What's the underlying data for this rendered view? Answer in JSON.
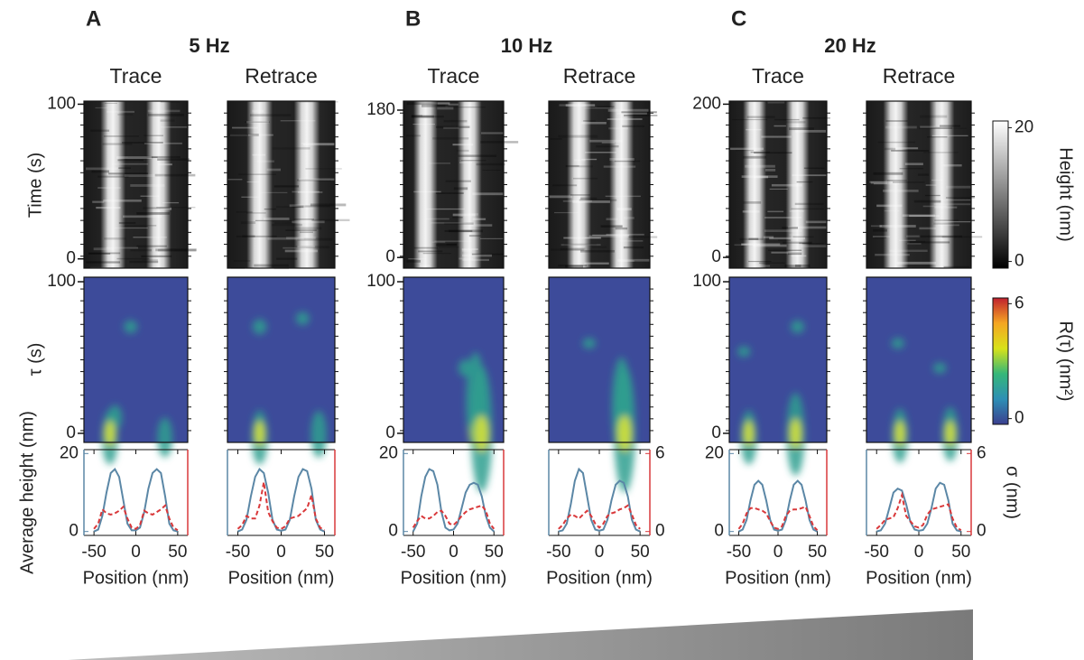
{
  "groups": [
    {
      "letter": "A",
      "title": "5 Hz",
      "columns": [
        "Trace",
        "Retrace"
      ],
      "time_ylim": [
        -6,
        102
      ],
      "time_yticks": [
        0,
        100
      ],
      "tau_ylim": [
        -6,
        103
      ],
      "tau_yticks": [
        0,
        100
      ]
    },
    {
      "letter": "B",
      "title": "10 Hz",
      "columns": [
        "Trace",
        "Retrace"
      ],
      "time_ylim": [
        -13,
        191
      ],
      "time_yticks": [
        0,
        180
      ],
      "tau_ylim": [
        -6,
        103
      ],
      "tau_yticks": [
        0,
        100
      ]
    },
    {
      "letter": "C",
      "title": "20 Hz",
      "columns": [
        "Trace",
        "Retrace"
      ],
      "time_ylim": [
        -14,
        204
      ],
      "time_yticks": [
        0,
        200
      ],
      "tau_ylim": [
        -6,
        103
      ],
      "tau_yticks": [
        0,
        100
      ]
    }
  ],
  "time_axis_label": "Time (s)",
  "tau_axis_label": "τ (s)",
  "colorbars": [
    {
      "label": "Height (nm)",
      "lim": [
        -1,
        21
      ],
      "ticks": [
        0,
        20
      ],
      "colors": [
        "#000000",
        "#ffffff"
      ]
    },
    {
      "label": "R(τ) (nm²)",
      "lim": [
        -0.3,
        6.3
      ],
      "ticks": [
        0,
        6
      ],
      "colors": [
        "#3b3f8f",
        "#2d8fb5",
        "#35b779",
        "#d8e219",
        "#f5a623",
        "#c0212f"
      ]
    }
  ],
  "chart_data": [
    {
      "type": "line",
      "xlabel": "Position (nm)",
      "y_label": "Average height (nm)",
      "x": [
        -50,
        -45,
        -40,
        -35,
        -30,
        -25,
        -20,
        -15,
        -10,
        -5,
        0,
        5,
        10,
        15,
        20,
        25,
        30,
        35,
        40,
        45,
        50
      ],
      "xlim": [
        -62,
        62
      ],
      "xticks": [
        -50,
        0,
        50
      ],
      "ylim": [
        -1,
        21
      ],
      "yticks": [
        0,
        20
      ],
      "y2lim": [
        -0.3,
        6.3
      ],
      "series": [
        {
          "color": "#5b87a6",
          "values": [
            0,
            0.5,
            4,
            10,
            15,
            16,
            14,
            8,
            2,
            0.3,
            0.3,
            1,
            5,
            11,
            15,
            16,
            15,
            9,
            2,
            0.3,
            0
          ]
        },
        {
          "color": "#d9383a",
          "axis": "y2",
          "dash": true,
          "values": [
            0.2,
            0.6,
            1.7,
            1.4,
            1.3,
            1.4,
            1.6,
            1.9,
            1.0,
            0.3,
            0.2,
            0.5,
            1.6,
            1.4,
            1.3,
            1.5,
            1.7,
            2.0,
            1.0,
            0.3,
            0.1
          ]
        }
      ]
    },
    {
      "type": "line",
      "xlabel": "Position (nm)",
      "x": [
        -50,
        -45,
        -40,
        -35,
        -30,
        -25,
        -20,
        -15,
        -10,
        -5,
        0,
        5,
        10,
        15,
        20,
        25,
        30,
        35,
        40,
        45,
        50
      ],
      "xlim": [
        -62,
        62
      ],
      "xticks": [
        -50,
        0,
        50
      ],
      "ylim": [
        -1,
        21
      ],
      "y2lim": [
        -0.3,
        6.3
      ],
      "series": [
        {
          "color": "#5b87a6",
          "values": [
            0,
            0.5,
            3,
            9,
            14,
            16,
            15,
            10,
            3,
            0.5,
            0.2,
            0.5,
            3,
            9,
            14,
            16,
            15.5,
            11,
            3,
            0.5,
            0
          ]
        },
        {
          "color": "#d9383a",
          "axis": "y2",
          "dash": true,
          "values": [
            0.2,
            0.5,
            1.2,
            1.0,
            1.0,
            2.0,
            3.8,
            1.5,
            0.8,
            0.3,
            0.2,
            0.4,
            1.0,
            1.1,
            1.2,
            1.5,
            1.8,
            2.8,
            1.0,
            0.3,
            0.1
          ]
        }
      ]
    },
    {
      "type": "line",
      "xlabel": "Position (nm)",
      "x": [
        -50,
        -45,
        -40,
        -35,
        -30,
        -25,
        -20,
        -15,
        -10,
        -5,
        0,
        5,
        10,
        15,
        20,
        25,
        30,
        35,
        40,
        45,
        50
      ],
      "xlim": [
        -62,
        62
      ],
      "xticks": [
        -50,
        0,
        50
      ],
      "ylim": [
        -1,
        21
      ],
      "yticks": [
        0,
        20
      ],
      "y2lim": [
        -0.3,
        6.3
      ],
      "series": [
        {
          "color": "#5b87a6",
          "values": [
            0,
            2,
            9,
            14,
            16,
            15.5,
            12,
            5,
            1,
            0.3,
            0.5,
            2,
            6,
            10,
            12,
            12.5,
            12,
            9,
            4,
            1,
            0
          ]
        },
        {
          "color": "#d9383a",
          "axis": "y2",
          "dash": true,
          "values": [
            0.3,
            0.8,
            1.2,
            1.0,
            1.0,
            1.2,
            1.5,
            1.6,
            1.2,
            0.6,
            0.5,
            0.8,
            1.2,
            1.5,
            1.7,
            1.8,
            1.9,
            2.0,
            1.6,
            0.6,
            0.2
          ]
        }
      ]
    },
    {
      "type": "line",
      "xlabel": "Position (nm)",
      "x": [
        -50,
        -45,
        -40,
        -35,
        -30,
        -25,
        -20,
        -15,
        -10,
        -5,
        0,
        5,
        10,
        15,
        20,
        25,
        30,
        35,
        40,
        45,
        50
      ],
      "xlim": [
        -62,
        62
      ],
      "xticks": [
        -50,
        0,
        50
      ],
      "ylim": [
        -1,
        21
      ],
      "y2lim": [
        -0.3,
        6.3
      ],
      "y2ticks": [
        0,
        6
      ],
      "series": [
        {
          "color": "#5b87a6",
          "values": [
            0,
            0.3,
            2,
            7,
            13,
            16,
            15,
            9,
            3,
            0.5,
            0.2,
            0.5,
            3,
            8,
            12,
            13,
            12.5,
            9,
            3,
            0.5,
            0
          ]
        },
        {
          "color": "#d9383a",
          "axis": "y2",
          "dash": true,
          "values": [
            0.2,
            0.5,
            1.0,
            1.3,
            1.2,
            1.0,
            1.3,
            1.6,
            1.2,
            0.6,
            0.3,
            0.6,
            1.2,
            1.4,
            1.5,
            1.7,
            1.8,
            2.0,
            1.3,
            0.5,
            0.2
          ]
        }
      ]
    },
    {
      "type": "line",
      "xlabel": "Position (nm)",
      "x": [
        -50,
        -45,
        -40,
        -35,
        -30,
        -25,
        -20,
        -15,
        -10,
        -5,
        0,
        5,
        10,
        15,
        20,
        25,
        30,
        35,
        40,
        45,
        50
      ],
      "xlim": [
        -62,
        62
      ],
      "xticks": [
        -50,
        0,
        50
      ],
      "ylim": [
        -1,
        21
      ],
      "yticks": [
        0,
        20
      ],
      "y2lim": [
        -0.3,
        6.3
      ],
      "series": [
        {
          "color": "#5b87a6",
          "values": [
            0,
            0.5,
            3,
            8,
            12,
            13,
            12,
            8,
            3,
            0.5,
            0.2,
            0.5,
            3,
            8,
            12,
            13,
            12,
            8,
            3,
            0.5,
            0
          ]
        },
        {
          "color": "#d9383a",
          "axis": "y2",
          "dash": true,
          "values": [
            0.2,
            0.6,
            1.4,
            1.8,
            1.8,
            1.7,
            1.6,
            1.4,
            0.8,
            0.3,
            0.2,
            0.4,
            1.2,
            1.6,
            1.7,
            1.7,
            1.8,
            1.9,
            1.2,
            0.4,
            0.1
          ]
        }
      ]
    },
    {
      "type": "line",
      "xlabel": "Position (nm)",
      "y2_label": "σ (nm)",
      "x": [
        -50,
        -45,
        -40,
        -35,
        -30,
        -25,
        -20,
        -15,
        -10,
        -5,
        0,
        5,
        10,
        15,
        20,
        25,
        30,
        35,
        40,
        45,
        50
      ],
      "xlim": [
        -62,
        62
      ],
      "xticks": [
        -50,
        0,
        50
      ],
      "ylim": [
        -1,
        21
      ],
      "y2lim": [
        -0.3,
        6.3
      ],
      "y2ticks": [
        0,
        6
      ],
      "series": [
        {
          "color": "#5b87a6",
          "values": [
            0,
            0.3,
            2,
            6,
            10,
            11,
            10.5,
            7,
            2.5,
            0.5,
            0.2,
            0.4,
            2,
            6,
            11,
            12.5,
            12,
            8,
            2,
            0.3,
            0
          ]
        },
        {
          "color": "#d9383a",
          "axis": "y2",
          "dash": true,
          "values": [
            0.2,
            0.5,
            0.9,
            1.0,
            1.1,
            1.8,
            2.8,
            1.2,
            0.8,
            0.4,
            0.3,
            0.5,
            1.3,
            1.7,
            1.8,
            1.9,
            2.0,
            2.1,
            1.0,
            0.3,
            0.1
          ]
        }
      ]
    }
  ]
}
